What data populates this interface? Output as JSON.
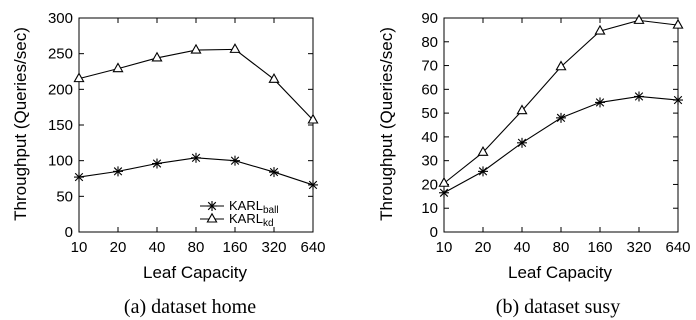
{
  "chart_data": [
    {
      "type": "line",
      "caption": "(a) dataset home",
      "xlabel": "Leaf Capacity",
      "ylabel": "Throughput (Queries/sec)",
      "categories": [
        "10",
        "20",
        "40",
        "80",
        "160",
        "320",
        "640"
      ],
      "ylim": [
        0,
        300
      ],
      "yticks": [
        0,
        50,
        100,
        150,
        200,
        250,
        300
      ],
      "legend_position": "bottom-right",
      "series": [
        {
          "name": "KARL",
          "subscript": "ball",
          "marker": "star",
          "values": [
            77,
            85,
            96,
            104,
            100,
            84,
            66
          ]
        },
        {
          "name": "KARL",
          "subscript": "kd",
          "marker": "triangle",
          "values": [
            215,
            229,
            244,
            255,
            256,
            214,
            157
          ]
        }
      ]
    },
    {
      "type": "line",
      "caption": "(b) dataset susy",
      "xlabel": "Leaf Capacity",
      "ylabel": "Throughput (Queries/sec)",
      "categories": [
        "10",
        "20",
        "40",
        "80",
        "160",
        "320",
        "640"
      ],
      "ylim": [
        0,
        90
      ],
      "yticks": [
        0,
        10,
        20,
        30,
        40,
        50,
        60,
        70,
        80,
        90
      ],
      "series": [
        {
          "marker": "star",
          "values": [
            16.5,
            25.5,
            37.5,
            48,
            54.5,
            57,
            55.5
          ]
        },
        {
          "marker": "triangle",
          "values": [
            20.5,
            33.5,
            51,
            69.5,
            84.5,
            89,
            87
          ]
        }
      ]
    }
  ]
}
